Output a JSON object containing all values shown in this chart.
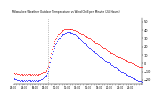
{
  "title": "Milwaukee Weather Outdoor Temperature vs Wind Chill per Minute (24 Hours)",
  "bg_color": "#ffffff",
  "dot_color_temp": "#ff0000",
  "dot_color_wc": "#0000ff",
  "vline_color": "#888888",
  "vline_x": 390,
  "total_minutes": 1440,
  "ylim": [
    -25,
    55
  ],
  "yticks": [
    -20,
    -10,
    0,
    10,
    20,
    30,
    40,
    50
  ],
  "temp_data": [
    [
      0,
      -12
    ],
    [
      10,
      -12
    ],
    [
      20,
      -13
    ],
    [
      30,
      -12
    ],
    [
      40,
      -13
    ],
    [
      50,
      -13
    ],
    [
      60,
      -13
    ],
    [
      70,
      -14
    ],
    [
      80,
      -13
    ],
    [
      90,
      -14
    ],
    [
      100,
      -13
    ],
    [
      110,
      -14
    ],
    [
      120,
      -13
    ],
    [
      130,
      -14
    ],
    [
      140,
      -13
    ],
    [
      150,
      -14
    ],
    [
      160,
      -13
    ],
    [
      170,
      -13
    ],
    [
      180,
      -14
    ],
    [
      190,
      -13
    ],
    [
      200,
      -14
    ],
    [
      210,
      -13
    ],
    [
      220,
      -14
    ],
    [
      230,
      -13
    ],
    [
      240,
      -14
    ],
    [
      250,
      -13
    ],
    [
      260,
      -14
    ],
    [
      270,
      -13
    ],
    [
      280,
      -14
    ],
    [
      290,
      -13
    ],
    [
      300,
      -13
    ],
    [
      310,
      -12
    ],
    [
      320,
      -12
    ],
    [
      330,
      -11
    ],
    [
      340,
      -11
    ],
    [
      350,
      -10
    ],
    [
      360,
      -9
    ],
    [
      370,
      -8
    ],
    [
      380,
      -6
    ],
    [
      390,
      -3
    ],
    [
      400,
      2
    ],
    [
      410,
      7
    ],
    [
      420,
      12
    ],
    [
      430,
      17
    ],
    [
      440,
      21
    ],
    [
      450,
      24
    ],
    [
      460,
      27
    ],
    [
      470,
      29
    ],
    [
      480,
      31
    ],
    [
      490,
      33
    ],
    [
      500,
      35
    ],
    [
      510,
      36
    ],
    [
      520,
      37
    ],
    [
      530,
      38
    ],
    [
      540,
      39
    ],
    [
      550,
      40
    ],
    [
      560,
      40
    ],
    [
      570,
      41
    ],
    [
      580,
      41
    ],
    [
      590,
      42
    ],
    [
      600,
      42
    ],
    [
      610,
      42
    ],
    [
      620,
      42
    ],
    [
      630,
      42
    ],
    [
      640,
      41
    ],
    [
      650,
      41
    ],
    [
      660,
      41
    ],
    [
      670,
      40
    ],
    [
      680,
      40
    ],
    [
      690,
      40
    ],
    [
      700,
      39
    ],
    [
      710,
      39
    ],
    [
      720,
      38
    ],
    [
      730,
      38
    ],
    [
      740,
      37
    ],
    [
      750,
      37
    ],
    [
      760,
      36
    ],
    [
      770,
      36
    ],
    [
      780,
      35
    ],
    [
      790,
      34
    ],
    [
      800,
      33
    ],
    [
      810,
      33
    ],
    [
      820,
      32
    ],
    [
      830,
      32
    ],
    [
      840,
      31
    ],
    [
      850,
      30
    ],
    [
      860,
      30
    ],
    [
      870,
      29
    ],
    [
      880,
      28
    ],
    [
      890,
      27
    ],
    [
      900,
      27
    ],
    [
      910,
      26
    ],
    [
      920,
      25
    ],
    [
      930,
      25
    ],
    [
      940,
      24
    ],
    [
      950,
      23
    ],
    [
      960,
      23
    ],
    [
      970,
      22
    ],
    [
      980,
      21
    ],
    [
      990,
      20
    ],
    [
      1000,
      20
    ],
    [
      1010,
      19
    ],
    [
      1020,
      19
    ],
    [
      1030,
      18
    ],
    [
      1040,
      17
    ],
    [
      1050,
      16
    ],
    [
      1060,
      15
    ],
    [
      1070,
      15
    ],
    [
      1080,
      14
    ],
    [
      1090,
      13
    ],
    [
      1100,
      13
    ],
    [
      1110,
      12
    ],
    [
      1120,
      11
    ],
    [
      1130,
      11
    ],
    [
      1140,
      10
    ],
    [
      1150,
      9
    ],
    [
      1160,
      9
    ],
    [
      1170,
      8
    ],
    [
      1180,
      8
    ],
    [
      1190,
      7
    ],
    [
      1200,
      7
    ],
    [
      1210,
      6
    ],
    [
      1220,
      6
    ],
    [
      1230,
      5
    ],
    [
      1240,
      5
    ],
    [
      1250,
      4
    ],
    [
      1260,
      4
    ],
    [
      1270,
      3
    ],
    [
      1280,
      3
    ],
    [
      1290,
      2
    ],
    [
      1300,
      2
    ],
    [
      1310,
      1
    ],
    [
      1320,
      1
    ],
    [
      1330,
      0
    ],
    [
      1340,
      0
    ],
    [
      1350,
      -1
    ],
    [
      1360,
      -1
    ],
    [
      1370,
      -2
    ],
    [
      1380,
      -2
    ],
    [
      1390,
      -3
    ],
    [
      1400,
      -3
    ],
    [
      1410,
      -4
    ],
    [
      1420,
      -4
    ],
    [
      1430,
      -5
    ],
    [
      1440,
      -5
    ]
  ],
  "windchill_data": [
    [
      0,
      -18
    ],
    [
      10,
      -19
    ],
    [
      20,
      -19
    ],
    [
      30,
      -19
    ],
    [
      40,
      -20
    ],
    [
      50,
      -20
    ],
    [
      60,
      -20
    ],
    [
      70,
      -21
    ],
    [
      80,
      -20
    ],
    [
      90,
      -21
    ],
    [
      100,
      -20
    ],
    [
      110,
      -21
    ],
    [
      120,
      -20
    ],
    [
      130,
      -21
    ],
    [
      140,
      -20
    ],
    [
      150,
      -21
    ],
    [
      160,
      -20
    ],
    [
      170,
      -20
    ],
    [
      180,
      -21
    ],
    [
      190,
      -20
    ],
    [
      200,
      -21
    ],
    [
      210,
      -20
    ],
    [
      220,
      -21
    ],
    [
      230,
      -20
    ],
    [
      240,
      -21
    ],
    [
      250,
      -20
    ],
    [
      260,
      -21
    ],
    [
      270,
      -20
    ],
    [
      280,
      -21
    ],
    [
      290,
      -20
    ],
    [
      300,
      -20
    ],
    [
      310,
      -19
    ],
    [
      320,
      -19
    ],
    [
      330,
      -18
    ],
    [
      340,
      -17
    ],
    [
      350,
      -16
    ],
    [
      360,
      -15
    ],
    [
      370,
      -14
    ],
    [
      380,
      -12
    ],
    [
      390,
      -9
    ],
    [
      400,
      -4
    ],
    [
      410,
      1
    ],
    [
      420,
      6
    ],
    [
      430,
      11
    ],
    [
      440,
      15
    ],
    [
      450,
      18
    ],
    [
      460,
      21
    ],
    [
      470,
      23
    ],
    [
      480,
      25
    ],
    [
      490,
      27
    ],
    [
      500,
      29
    ],
    [
      510,
      30
    ],
    [
      520,
      31
    ],
    [
      530,
      33
    ],
    [
      540,
      34
    ],
    [
      550,
      35
    ],
    [
      560,
      35
    ],
    [
      570,
      36
    ],
    [
      580,
      37
    ],
    [
      590,
      37
    ],
    [
      600,
      38
    ],
    [
      610,
      38
    ],
    [
      620,
      38
    ],
    [
      630,
      38
    ],
    [
      640,
      37
    ],
    [
      650,
      37
    ],
    [
      660,
      37
    ],
    [
      670,
      36
    ],
    [
      680,
      36
    ],
    [
      690,
      35
    ],
    [
      700,
      34
    ],
    [
      710,
      33
    ],
    [
      720,
      32
    ],
    [
      730,
      31
    ],
    [
      740,
      30
    ],
    [
      750,
      29
    ],
    [
      760,
      28
    ],
    [
      770,
      27
    ],
    [
      780,
      26
    ],
    [
      790,
      25
    ],
    [
      800,
      24
    ],
    [
      810,
      23
    ],
    [
      820,
      22
    ],
    [
      830,
      21
    ],
    [
      840,
      20
    ],
    [
      850,
      19
    ],
    [
      860,
      18
    ],
    [
      870,
      17
    ],
    [
      880,
      16
    ],
    [
      890,
      15
    ],
    [
      900,
      15
    ],
    [
      910,
      14
    ],
    [
      920,
      13
    ],
    [
      930,
      12
    ],
    [
      940,
      11
    ],
    [
      950,
      10
    ],
    [
      960,
      9
    ],
    [
      970,
      8
    ],
    [
      980,
      7
    ],
    [
      990,
      6
    ],
    [
      1000,
      6
    ],
    [
      1010,
      5
    ],
    [
      1020,
      4
    ],
    [
      1030,
      3
    ],
    [
      1040,
      3
    ],
    [
      1050,
      2
    ],
    [
      1060,
      1
    ],
    [
      1070,
      1
    ],
    [
      1080,
      0
    ],
    [
      1090,
      -1
    ],
    [
      1100,
      -2
    ],
    [
      1110,
      -2
    ],
    [
      1120,
      -3
    ],
    [
      1130,
      -4
    ],
    [
      1140,
      -5
    ],
    [
      1150,
      -5
    ],
    [
      1160,
      -6
    ],
    [
      1170,
      -7
    ],
    [
      1180,
      -8
    ],
    [
      1190,
      -8
    ],
    [
      1200,
      -9
    ],
    [
      1210,
      -10
    ],
    [
      1220,
      -10
    ],
    [
      1230,
      -11
    ],
    [
      1240,
      -12
    ],
    [
      1250,
      -12
    ],
    [
      1260,
      -13
    ],
    [
      1270,
      -14
    ],
    [
      1280,
      -14
    ],
    [
      1290,
      -15
    ],
    [
      1300,
      -16
    ],
    [
      1310,
      -16
    ],
    [
      1320,
      -17
    ],
    [
      1330,
      -17
    ],
    [
      1340,
      -18
    ],
    [
      1350,
      -18
    ],
    [
      1360,
      -19
    ],
    [
      1370,
      -19
    ],
    [
      1380,
      -20
    ],
    [
      1390,
      -20
    ],
    [
      1400,
      -21
    ],
    [
      1410,
      -21
    ],
    [
      1420,
      -22
    ],
    [
      1430,
      -22
    ],
    [
      1440,
      -23
    ]
  ]
}
